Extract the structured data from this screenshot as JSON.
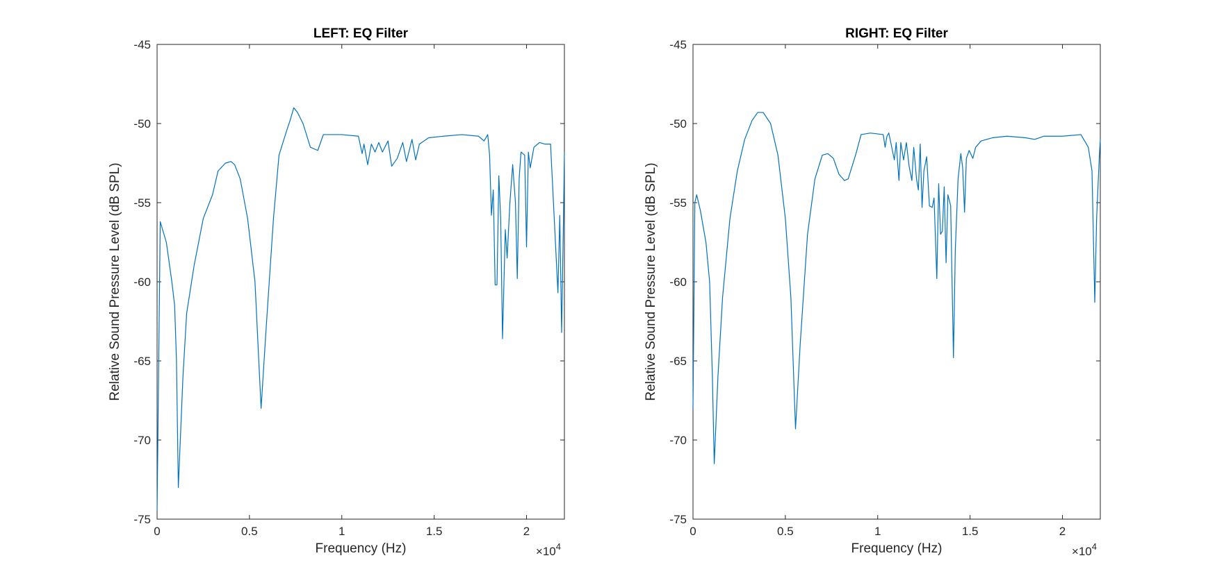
{
  "chart_data": [
    {
      "type": "line",
      "title": "LEFT: EQ Filter",
      "x_label": "Frequency (Hz)",
      "y_label": "Relative Sound Pressure Level (dB SPL)",
      "x_multiplier": "×10",
      "x_multiplier_exponent": "4",
      "xlim": [
        0,
        22050
      ],
      "ylim": [
        -75,
        -45
      ],
      "xticks": [
        0,
        {
          "value": 5000,
          "label": "0.5"
        },
        {
          "value": 10000,
          "label": "1"
        },
        {
          "value": 15000,
          "label": "1.5"
        },
        {
          "value": 20000,
          "label": "2"
        }
      ],
      "yticks": [
        -75,
        -70,
        -65,
        -60,
        -55,
        -50,
        -45
      ],
      "color": "#0072bd",
      "x": [
        0,
        170,
        500,
        800,
        950,
        1050,
        1150,
        1400,
        1600,
        2000,
        2500,
        3000,
        3300,
        3700,
        4000,
        4200,
        4500,
        4900,
        5300,
        5630,
        5900,
        6300,
        6600,
        7000,
        7200,
        7400,
        7600,
        7900,
        8300,
        8700,
        9000,
        10000,
        10900,
        11100,
        11200,
        11400,
        11600,
        11800,
        12000,
        12200,
        12500,
        12700,
        13000,
        13300,
        13500,
        13800,
        14000,
        14200,
        14700,
        15500,
        16500,
        17400,
        17700,
        17900,
        18000,
        18100,
        18200,
        18300,
        18400,
        18500,
        18600,
        18700,
        18850,
        18950,
        19100,
        19250,
        19400,
        19500,
        19600,
        19700,
        19900,
        20000,
        20100,
        20200,
        20400,
        20700,
        21000,
        21300,
        21500,
        21700,
        21800,
        21900,
        22000,
        22050
      ],
      "values": [
        -74.5,
        -56.2,
        -57.5,
        -60,
        -61.5,
        -65,
        -73,
        -66,
        -62,
        -59,
        -56,
        -54.5,
        -53,
        -52.5,
        -52.4,
        -52.6,
        -53.5,
        -56,
        -60,
        -68,
        -63,
        -56,
        -52,
        -50.5,
        -49.8,
        -49,
        -49.3,
        -50,
        -51.5,
        -51.7,
        -50.7,
        -50.7,
        -50.8,
        -51.9,
        -51.3,
        -52.6,
        -51.3,
        -51.8,
        -51.2,
        -51.8,
        -51.1,
        -52.7,
        -52.2,
        -51.2,
        -52.4,
        -51,
        -52.3,
        -51.3,
        -50.9,
        -50.8,
        -50.7,
        -50.8,
        -51.1,
        -50.7,
        -52,
        -55.8,
        -54.2,
        -60.2,
        -60.2,
        -53.3,
        -56,
        -63.6,
        -56.7,
        -58.5,
        -55,
        -52.6,
        -55,
        -59.8,
        -53.5,
        -51.8,
        -52,
        -57.8,
        -51.8,
        -52.8,
        -51.5,
        -51.2,
        -51.3,
        -51.3,
        -56,
        -60.7,
        -55.8,
        -63.2,
        -56,
        -51.8
      ]
    },
    {
      "type": "line",
      "title": "RIGHT: EQ Filter",
      "x_label": "Frequency (Hz)",
      "y_label": "Relative Sound Pressure Level (dB SPL)",
      "x_multiplier": "×10",
      "x_multiplier_exponent": "4",
      "xlim": [
        0,
        22050
      ],
      "ylim": [
        -75,
        -45
      ],
      "xticks": [
        0,
        {
          "value": 5000,
          "label": "0.5"
        },
        {
          "value": 10000,
          "label": "1"
        },
        {
          "value": 15000,
          "label": "1.5"
        },
        {
          "value": 20000,
          "label": "2"
        }
      ],
      "yticks": [
        -75,
        -70,
        -65,
        -60,
        -55,
        -50,
        -45
      ],
      "color": "#0072bd",
      "x": [
        0,
        100,
        200,
        400,
        700,
        900,
        1050,
        1150,
        1350,
        1600,
        2000,
        2400,
        2800,
        3200,
        3500,
        3800,
        4200,
        4600,
        5000,
        5300,
        5550,
        5800,
        6200,
        6600,
        7000,
        7300,
        7600,
        7900,
        8200,
        8400,
        8800,
        9100,
        9600,
        10300,
        10400,
        10500,
        10600,
        10900,
        11000,
        11150,
        11250,
        11400,
        11550,
        11700,
        11850,
        11950,
        12100,
        12200,
        12300,
        12400,
        12500,
        12650,
        12800,
        12950,
        13050,
        13200,
        13300,
        13400,
        13500,
        13600,
        13700,
        13800,
        13950,
        14100,
        14200,
        14350,
        14500,
        14600,
        14700,
        14800,
        14950,
        15150,
        15300,
        15600,
        16200,
        17000,
        18000,
        18500,
        19000,
        20000,
        21000,
        21400,
        21600,
        21750,
        21850,
        22000,
        22050
      ],
      "values": [
        -68,
        -55,
        -54.5,
        -55.5,
        -57.5,
        -60,
        -66,
        -71.5,
        -66,
        -61,
        -56,
        -53,
        -51,
        -49.8,
        -49.3,
        -49.3,
        -50,
        -52,
        -56,
        -61,
        -69.3,
        -64,
        -57,
        -53.5,
        -52,
        -51.9,
        -52.2,
        -53.2,
        -53.6,
        -53.5,
        -52,
        -50.7,
        -50.6,
        -50.7,
        -51.5,
        -50.8,
        -50.6,
        -52.3,
        -51.2,
        -53.6,
        -51.2,
        -52.3,
        -51.2,
        -52.7,
        -53.6,
        -51.5,
        -53.5,
        -54.2,
        -51.3,
        -55.3,
        -53,
        -52.1,
        -55.2,
        -55.3,
        -54.7,
        -59.8,
        -53.8,
        -57,
        -56.8,
        -54,
        -58.8,
        -54.5,
        -55.2,
        -64.8,
        -58,
        -53.5,
        -51.9,
        -52.8,
        -55.6,
        -52.2,
        -51.7,
        -52.2,
        -51.5,
        -51.1,
        -50.9,
        -50.8,
        -50.9,
        -51,
        -50.8,
        -50.8,
        -50.7,
        -51.5,
        -53,
        -61.3,
        -56,
        -52,
        -51
      ]
    }
  ]
}
